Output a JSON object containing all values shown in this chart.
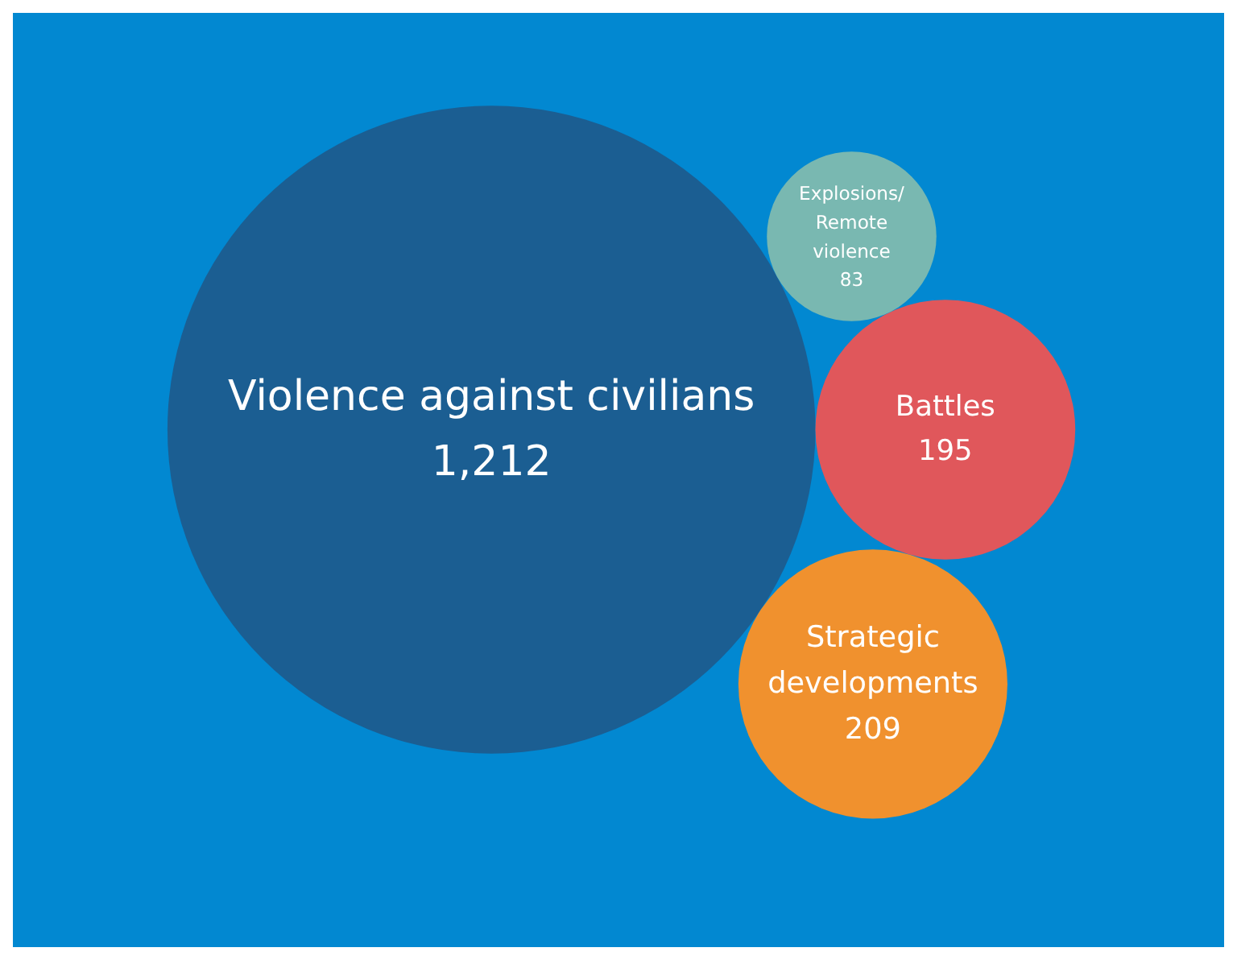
{
  "chart_data": {
    "type": "other",
    "categories": [
      "Violence against civilians",
      "Battles",
      "Strategic developments",
      "Explosions/Remote violence"
    ],
    "values": [
      1212,
      195,
      209,
      83
    ],
    "value_labels": [
      "1,212",
      "195",
      "209",
      "83"
    ],
    "colors": [
      "#1b5e92",
      "#e0575b",
      "#f0912e",
      "#79b8b1"
    ]
  }
}
